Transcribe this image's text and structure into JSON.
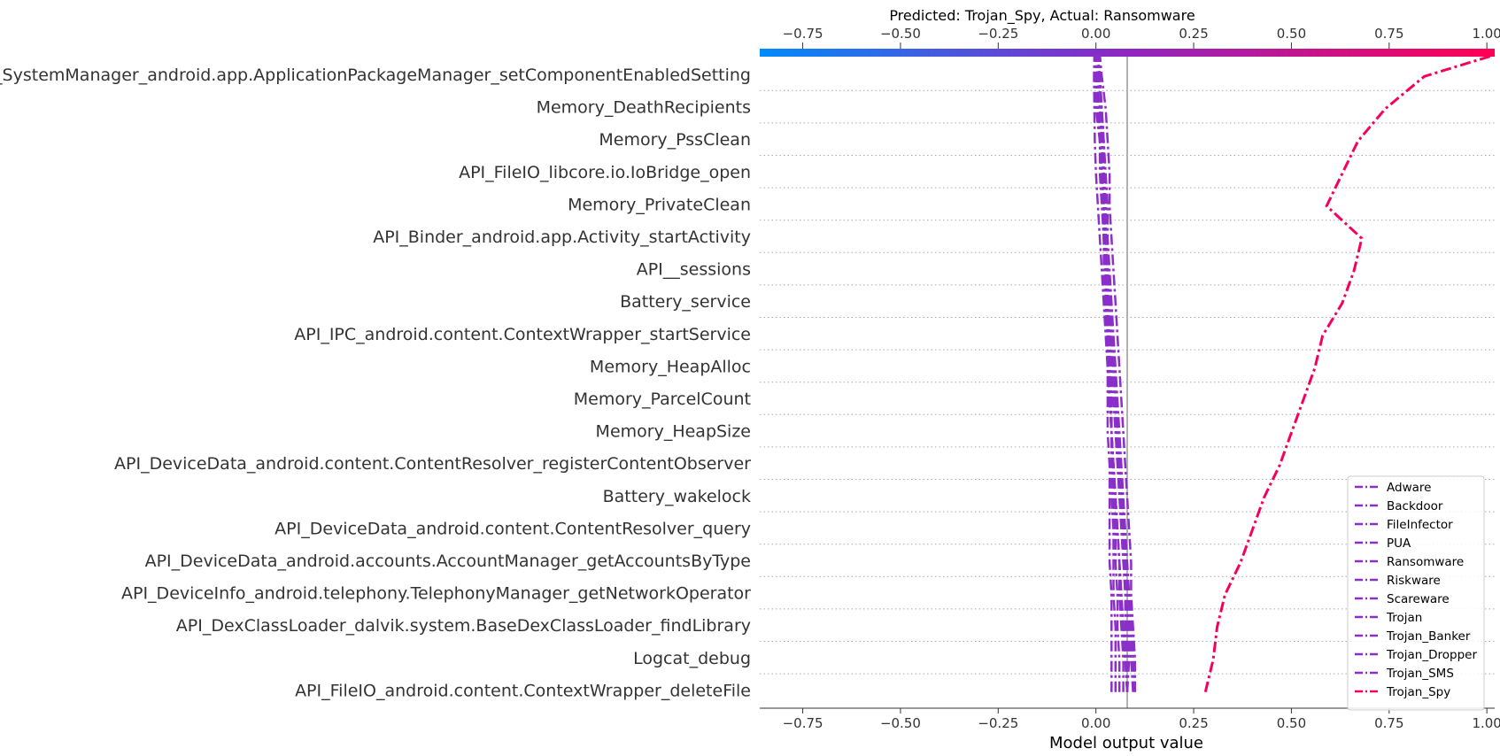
{
  "chart_data": {
    "type": "line",
    "title": "Predicted: Trojan_Spy, Actual: Ransomware",
    "xlabel": "Model output value",
    "xlim": [
      -0.86,
      1.02
    ],
    "xticks": [
      -0.75,
      -0.5,
      -0.25,
      0.0,
      0.25,
      0.5,
      0.75,
      1.0
    ],
    "xtick_labels": [
      "−0.75",
      "−0.50",
      "−0.25",
      "0.00",
      "0.25",
      "0.50",
      "0.75",
      "1.00"
    ],
    "base_value": 0.08,
    "colorbar": true,
    "grid": "dotted horizontal lines between features",
    "legend_placement": "bottom-right",
    "features": [
      "API_SystemManager_android.app.ApplicationPackageManager_setComponentEnabledSetting",
      "Memory_DeathRecipients",
      "Memory_PssClean",
      "API_FileIO_libcore.io.IoBridge_open",
      "Memory_PrivateClean",
      "API_Binder_android.app.Activity_startActivity",
      "API__sessions",
      "Battery_service",
      "API_IPC_android.content.ContextWrapper_startService",
      "Memory_HeapAlloc",
      "Memory_ParcelCount",
      "Memory_HeapSize",
      "API_DeviceData_android.content.ContentResolver_registerContentObserver",
      "Battery_wakelock",
      "API_DeviceData_android.content.ContentResolver_query",
      "API_DeviceData_android.accounts.AccountManager_getAccountsByType",
      "API_DeviceInfo_android.telephony.TelephonyManager_getNetworkOperator",
      "API_DexClassLoader_dalvik.system.BaseDexClassLoader_findLibrary",
      "Logcat_debug",
      "API_FileIO_android.content.ContextWrapper_deleteFile"
    ],
    "series": [
      {
        "name": "Adware",
        "color": "#8b2fc9",
        "values": [
          0.08,
          0.075,
          0.07,
          0.065,
          0.06,
          0.055,
          0.05,
          0.045,
          0.04,
          0.035,
          0.03,
          0.025,
          0.02,
          0.015,
          0.01,
          0.005,
          0.0,
          -0.003,
          -0.004,
          -0.005,
          -0.004
        ]
      },
      {
        "name": "Backdoor",
        "color": "#8b2fc9",
        "values": [
          0.08,
          0.08,
          0.075,
          0.075,
          0.07,
          0.065,
          0.06,
          0.055,
          0.05,
          0.045,
          0.04,
          0.035,
          0.03,
          0.025,
          0.02,
          0.02,
          0.015,
          0.01,
          0.0,
          0.0,
          0.0
        ]
      },
      {
        "name": "FileInfector",
        "color": "#8b2fc9",
        "values": [
          0.08,
          0.085,
          0.08,
          0.08,
          0.075,
          0.07,
          0.065,
          0.06,
          0.055,
          0.05,
          0.045,
          0.04,
          0.035,
          0.03,
          0.025,
          0.02,
          0.015,
          0.01,
          0.01,
          0.005,
          0.0
        ]
      },
      {
        "name": "PUA",
        "color": "#8b2fc9",
        "values": [
          0.1,
          0.095,
          0.09,
          0.085,
          0.08,
          0.075,
          0.07,
          0.065,
          0.06,
          0.055,
          0.05,
          0.045,
          0.04,
          0.035,
          0.03,
          0.03,
          0.025,
          0.02,
          0.015,
          0.01,
          0.005
        ]
      },
      {
        "name": "Ransomware",
        "color": "#8b2fc9",
        "values": [
          0.1,
          0.1,
          0.095,
          0.09,
          0.09,
          0.085,
          0.08,
          0.075,
          0.07,
          0.065,
          0.06,
          0.055,
          0.05,
          0.045,
          0.04,
          0.035,
          0.035,
          0.03,
          0.025,
          0.015,
          0.01
        ]
      },
      {
        "name": "Riskware",
        "color": "#8b2fc9",
        "values": [
          0.095,
          0.09,
          0.085,
          0.08,
          0.075,
          0.07,
          0.065,
          0.06,
          0.055,
          0.05,
          0.045,
          0.04,
          0.035,
          0.03,
          0.025,
          0.02,
          0.015,
          0.01,
          0.005,
          0.0,
          0.0
        ]
      },
      {
        "name": "Scareware",
        "color": "#8b2fc9",
        "values": [
          0.08,
          0.075,
          0.07,
          0.065,
          0.06,
          0.055,
          0.05,
          0.045,
          0.04,
          0.035,
          0.03,
          0.03,
          0.025,
          0.02,
          0.02,
          0.015,
          0.01,
          0.01,
          0.005,
          0.005,
          0.0
        ]
      },
      {
        "name": "Trojan",
        "color": "#8b2fc9",
        "values": [
          0.07,
          0.07,
          0.065,
          0.06,
          0.06,
          0.055,
          0.05,
          0.045,
          0.04,
          0.04,
          0.035,
          0.03,
          0.03,
          0.025,
          0.025,
          0.02,
          0.015,
          0.015,
          0.01,
          0.005,
          0.0
        ]
      },
      {
        "name": "Trojan_Banker",
        "color": "#8b2fc9",
        "values": [
          0.06,
          0.06,
          0.055,
          0.055,
          0.05,
          0.05,
          0.045,
          0.045,
          0.04,
          0.04,
          0.035,
          0.035,
          0.03,
          0.03,
          0.025,
          0.025,
          0.02,
          0.015,
          0.01,
          0.005,
          0.0
        ]
      },
      {
        "name": "Trojan_Dropper",
        "color": "#8b2fc9",
        "values": [
          0.05,
          0.05,
          0.05,
          0.045,
          0.045,
          0.045,
          0.04,
          0.04,
          0.04,
          0.035,
          0.035,
          0.035,
          0.03,
          0.03,
          0.025,
          0.025,
          0.02,
          0.02,
          0.015,
          0.01,
          0.005
        ]
      },
      {
        "name": "Trojan_SMS",
        "color": "#8b2fc9",
        "values": [
          0.04,
          0.04,
          0.04,
          0.04,
          0.035,
          0.035,
          0.035,
          0.035,
          0.03,
          0.03,
          0.03,
          0.03,
          0.025,
          0.025,
          0.02,
          0.02,
          0.02,
          0.015,
          0.01,
          0.01,
          0.005
        ]
      },
      {
        "name": "Trojan_Spy",
        "color": "#f5005c",
        "values": [
          0.28,
          0.3,
          0.31,
          0.33,
          0.37,
          0.4,
          0.43,
          0.47,
          0.5,
          0.53,
          0.56,
          0.58,
          0.63,
          0.66,
          0.68,
          0.59,
          0.63,
          0.67,
          0.74,
          0.84,
          1.02
        ]
      }
    ]
  }
}
